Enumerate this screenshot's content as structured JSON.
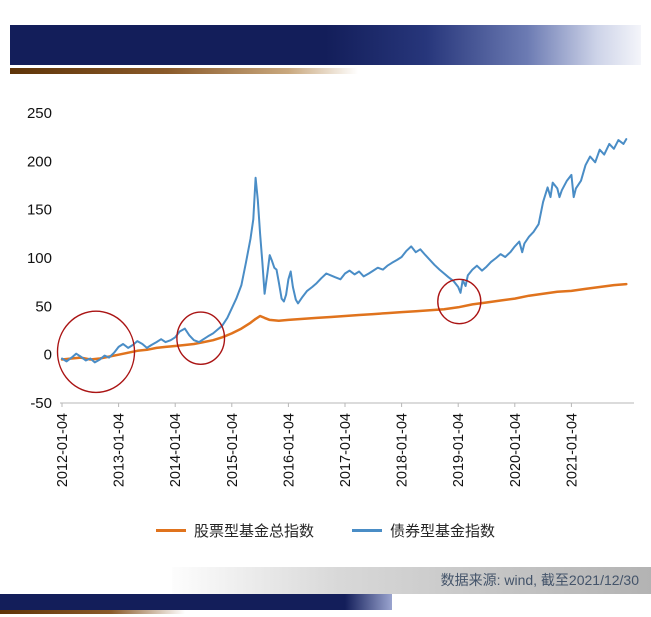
{
  "chart_data": {
    "type": "line",
    "x_range": [
      2012,
      2022
    ],
    "y_range": [
      -50,
      250
    ],
    "x_ticks": [
      "2012-01-04",
      "2013-01-04",
      "2014-01-04",
      "2015-01-04",
      "2016-01-04",
      "2017-01-04",
      "2018-01-04",
      "2019-01-04",
      "2020-01-04",
      "2021-01-04"
    ],
    "y_ticks": [
      -50,
      0,
      50,
      100,
      150,
      200,
      250
    ],
    "grid": false,
    "legend_position": "bottom",
    "series": [
      {
        "name": "股票型基金总指数",
        "color": "#e0731d",
        "width": 2.5,
        "points": [
          [
            2012.0,
            -5
          ],
          [
            2012.17,
            -4
          ],
          [
            2012.33,
            -3
          ],
          [
            2012.5,
            -5
          ],
          [
            2012.67,
            -4
          ],
          [
            2012.83,
            -2
          ],
          [
            2013.0,
            0
          ],
          [
            2013.17,
            2
          ],
          [
            2013.33,
            4
          ],
          [
            2013.5,
            5
          ],
          [
            2013.67,
            7
          ],
          [
            2013.83,
            8
          ],
          [
            2014.0,
            9
          ],
          [
            2014.17,
            10
          ],
          [
            2014.33,
            11
          ],
          [
            2014.5,
            13
          ],
          [
            2014.67,
            15
          ],
          [
            2014.83,
            18
          ],
          [
            2015.0,
            22
          ],
          [
            2015.17,
            27
          ],
          [
            2015.33,
            33
          ],
          [
            2015.42,
            37
          ],
          [
            2015.5,
            40
          ],
          [
            2015.58,
            38
          ],
          [
            2015.67,
            36
          ],
          [
            2015.83,
            35
          ],
          [
            2016.0,
            36
          ],
          [
            2016.25,
            37
          ],
          [
            2016.5,
            38
          ],
          [
            2016.75,
            39
          ],
          [
            2017.0,
            40
          ],
          [
            2017.25,
            41
          ],
          [
            2017.5,
            42
          ],
          [
            2017.75,
            43
          ],
          [
            2018.0,
            44
          ],
          [
            2018.25,
            45
          ],
          [
            2018.5,
            46
          ],
          [
            2018.75,
            47
          ],
          [
            2019.0,
            49
          ],
          [
            2019.25,
            52
          ],
          [
            2019.5,
            54
          ],
          [
            2019.75,
            56
          ],
          [
            2020.0,
            58
          ],
          [
            2020.25,
            61
          ],
          [
            2020.5,
            63
          ],
          [
            2020.75,
            65
          ],
          [
            2021.0,
            66
          ],
          [
            2021.25,
            68
          ],
          [
            2021.5,
            70
          ],
          [
            2021.75,
            72
          ],
          [
            2021.97,
            73
          ]
        ]
      },
      {
        "name": "债券型基金指数",
        "color": "#4a8dc6",
        "width": 2,
        "points": [
          [
            2012.0,
            -4
          ],
          [
            2012.08,
            -7
          ],
          [
            2012.17,
            -3
          ],
          [
            2012.25,
            1
          ],
          [
            2012.33,
            -2
          ],
          [
            2012.42,
            -6
          ],
          [
            2012.5,
            -4
          ],
          [
            2012.58,
            -8
          ],
          [
            2012.67,
            -5
          ],
          [
            2012.75,
            -1
          ],
          [
            2012.83,
            -3
          ],
          [
            2012.92,
            2
          ],
          [
            2013.0,
            8
          ],
          [
            2013.08,
            11
          ],
          [
            2013.17,
            7
          ],
          [
            2013.25,
            10
          ],
          [
            2013.33,
            14
          ],
          [
            2013.42,
            11
          ],
          [
            2013.5,
            7
          ],
          [
            2013.58,
            10
          ],
          [
            2013.67,
            13
          ],
          [
            2013.75,
            16
          ],
          [
            2013.83,
            13
          ],
          [
            2013.92,
            15
          ],
          [
            2014.0,
            18
          ],
          [
            2014.08,
            24
          ],
          [
            2014.17,
            27
          ],
          [
            2014.25,
            20
          ],
          [
            2014.33,
            15
          ],
          [
            2014.42,
            13
          ],
          [
            2014.5,
            16
          ],
          [
            2014.58,
            19
          ],
          [
            2014.67,
            22
          ],
          [
            2014.75,
            26
          ],
          [
            2014.83,
            30
          ],
          [
            2014.92,
            38
          ],
          [
            2015.0,
            48
          ],
          [
            2015.08,
            58
          ],
          [
            2015.17,
            72
          ],
          [
            2015.25,
            95
          ],
          [
            2015.33,
            120
          ],
          [
            2015.38,
            140
          ],
          [
            2015.42,
            183
          ],
          [
            2015.46,
            160
          ],
          [
            2015.5,
            125
          ],
          [
            2015.54,
            95
          ],
          [
            2015.58,
            63
          ],
          [
            2015.63,
            85
          ],
          [
            2015.67,
            103
          ],
          [
            2015.71,
            97
          ],
          [
            2015.75,
            90
          ],
          [
            2015.79,
            88
          ],
          [
            2015.83,
            75
          ],
          [
            2015.88,
            58
          ],
          [
            2015.92,
            55
          ],
          [
            2015.96,
            62
          ],
          [
            2016.0,
            78
          ],
          [
            2016.04,
            86
          ],
          [
            2016.08,
            70
          ],
          [
            2016.13,
            57
          ],
          [
            2016.17,
            53
          ],
          [
            2016.25,
            60
          ],
          [
            2016.33,
            66
          ],
          [
            2016.42,
            70
          ],
          [
            2016.5,
            74
          ],
          [
            2016.58,
            79
          ],
          [
            2016.67,
            84
          ],
          [
            2016.75,
            82
          ],
          [
            2016.83,
            80
          ],
          [
            2016.92,
            78
          ],
          [
            2017.0,
            84
          ],
          [
            2017.08,
            87
          ],
          [
            2017.17,
            83
          ],
          [
            2017.25,
            86
          ],
          [
            2017.33,
            81
          ],
          [
            2017.42,
            84
          ],
          [
            2017.5,
            87
          ],
          [
            2017.58,
            90
          ],
          [
            2017.67,
            88
          ],
          [
            2017.75,
            92
          ],
          [
            2017.83,
            95
          ],
          [
            2017.92,
            98
          ],
          [
            2018.0,
            101
          ],
          [
            2018.08,
            107
          ],
          [
            2018.17,
            112
          ],
          [
            2018.25,
            106
          ],
          [
            2018.33,
            109
          ],
          [
            2018.42,
            103
          ],
          [
            2018.5,
            98
          ],
          [
            2018.58,
            93
          ],
          [
            2018.67,
            88
          ],
          [
            2018.75,
            84
          ],
          [
            2018.83,
            80
          ],
          [
            2018.92,
            76
          ],
          [
            2019.0,
            70
          ],
          [
            2019.04,
            64
          ],
          [
            2019.08,
            77
          ],
          [
            2019.13,
            71
          ],
          [
            2019.17,
            82
          ],
          [
            2019.25,
            88
          ],
          [
            2019.33,
            92
          ],
          [
            2019.42,
            87
          ],
          [
            2019.5,
            91
          ],
          [
            2019.58,
            96
          ],
          [
            2019.67,
            100
          ],
          [
            2019.75,
            104
          ],
          [
            2019.83,
            101
          ],
          [
            2019.92,
            106
          ],
          [
            2020.0,
            112
          ],
          [
            2020.08,
            117
          ],
          [
            2020.13,
            106
          ],
          [
            2020.17,
            115
          ],
          [
            2020.25,
            122
          ],
          [
            2020.33,
            127
          ],
          [
            2020.42,
            135
          ],
          [
            2020.5,
            158
          ],
          [
            2020.58,
            173
          ],
          [
            2020.63,
            163
          ],
          [
            2020.67,
            178
          ],
          [
            2020.75,
            172
          ],
          [
            2020.79,
            163
          ],
          [
            2020.83,
            170
          ],
          [
            2020.92,
            180
          ],
          [
            2021.0,
            186
          ],
          [
            2021.04,
            163
          ],
          [
            2021.08,
            172
          ],
          [
            2021.17,
            180
          ],
          [
            2021.25,
            196
          ],
          [
            2021.33,
            205
          ],
          [
            2021.42,
            199
          ],
          [
            2021.5,
            212
          ],
          [
            2021.58,
            207
          ],
          [
            2021.67,
            218
          ],
          [
            2021.75,
            213
          ],
          [
            2021.83,
            222
          ],
          [
            2021.92,
            218
          ],
          [
            2021.97,
            223
          ]
        ]
      }
    ],
    "annotations": [
      {
        "shape": "ellipse",
        "cx": 2012.6,
        "cy": 3,
        "rx_years": 0.68,
        "ry_units": 42,
        "color": "#aa1414"
      },
      {
        "shape": "ellipse",
        "cx": 2014.45,
        "cy": 17,
        "rx_years": 0.42,
        "ry_units": 27,
        "color": "#aa1414"
      },
      {
        "shape": "ellipse",
        "cx": 2019.02,
        "cy": 55,
        "rx_years": 0.38,
        "ry_units": 23,
        "color": "#aa1414"
      }
    ]
  },
  "legend": {
    "items": [
      {
        "label": "股票型基金总指数"
      },
      {
        "label": "债券型基金指数"
      }
    ]
  },
  "footer": {
    "source_text": "数据来源: wind, 截至2021/12/30"
  },
  "colors": {
    "navy_bar": "#131e5a",
    "brown_accent": "#8a5a2a",
    "annotation_red": "#aa1414"
  }
}
